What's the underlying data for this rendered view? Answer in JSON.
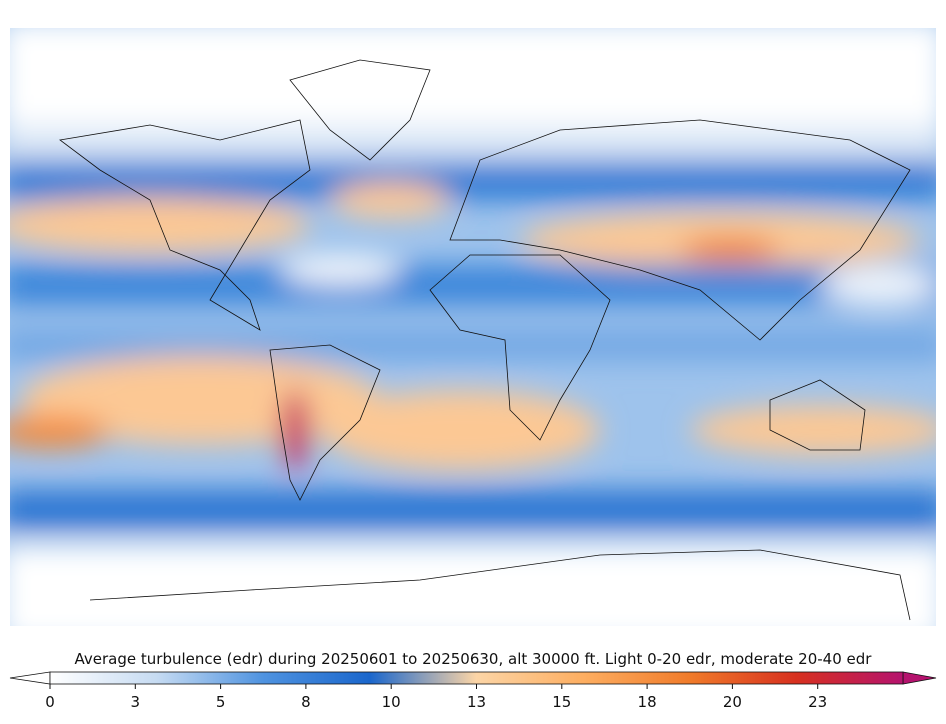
{
  "map": {
    "colorbar": {
      "title": "Average turbulence (edr) during 20250601 to 20250630, alt 30000 ft. Light 0-20 edr, moderate 20-40 edr",
      "lim": [
        0,
        25
      ],
      "ticks": [
        0,
        {
          "value": 2.5,
          "label": "3"
        },
        5,
        {
          "value": 7.5,
          "label": "8"
        },
        10,
        {
          "value": 12.5,
          "label": "13"
        },
        15,
        {
          "value": 17.5,
          "label": "18"
        },
        20,
        {
          "value": 22.5,
          "label": "23"
        }
      ],
      "colors": [
        "#ffffff",
        "#c6dbf2",
        "#4f93e0",
        "#1a66cc",
        "#fcd5a6",
        "#fdae61",
        "#f07b2a",
        "#d7301f",
        "#b5136e"
      ]
    }
  }
}
